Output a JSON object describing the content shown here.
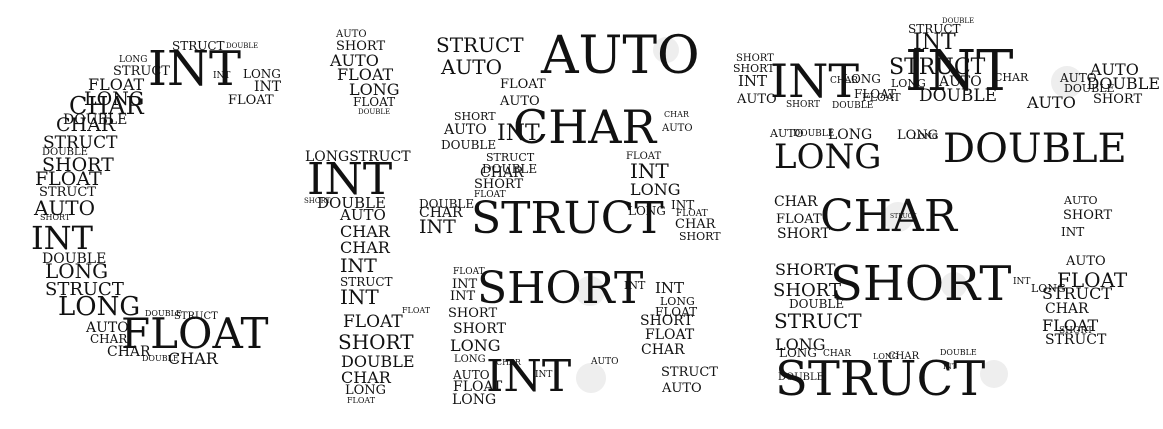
{
  "colors": {
    "background": "#ffffff",
    "text": "#111111",
    "counter_fill": "#eeeeee"
  },
  "letters": [
    {
      "name": "letter-c",
      "words": [
        "STRUCT",
        "DOUBLE",
        "INT",
        "LONG",
        "STRUCT",
        "LONG",
        "FLOAT",
        "INT",
        "LONG",
        "INT",
        "FLOAT",
        "CHAR",
        "DOUBLE",
        "CHAR",
        "STRUCT",
        "DOUBLE",
        "SHORT",
        "FLOAT",
        "STRUCT",
        "AUTO",
        "SHORT",
        "INT",
        "DOUBLE",
        "LONG",
        "STRUCT",
        "LONG",
        "DOUBLE",
        "AUTO",
        "CHAR",
        "FLOAT",
        "STRUCT",
        "CHAR",
        "DOUBLE",
        "CHAR"
      ]
    },
    {
      "name": "letter-i",
      "words": [
        "AUTO",
        "SHORT",
        "AUTO",
        "FLOAT",
        "LONG",
        "FLOAT",
        "DOUBLE",
        "LONGSTRUCT",
        "INT",
        "SHORT",
        "DOUBLE",
        "AUTO",
        "CHAR",
        "CHAR",
        "INT",
        "STRUCT",
        "INT",
        "FLOAT",
        "FLOAT",
        "SHORT",
        "DOUBLE",
        "CHAR",
        "LONG",
        "FLOAT"
      ]
    },
    {
      "name": "letter-s",
      "words": [
        "STRUCT",
        "AUTO",
        "AUTO",
        "FLOAT",
        "AUTO",
        "SHORT",
        "AUTO",
        "INT",
        "DOUBLE",
        "CHAR",
        "CHAR",
        "AUTO",
        "STRUCT",
        "DOUBLE",
        "FLOAT",
        "CHAR",
        "INT",
        "SHORT",
        "FLOAT",
        "LONG",
        "DOUBLE",
        "CHAR",
        "STRUCT",
        "INT",
        "LONG",
        "INT",
        "FLOAT",
        "CHAR",
        "SHORT",
        "FLOAT",
        "INT",
        "SHORT",
        "INT",
        "INT",
        "LONG",
        "INT",
        "SHORT",
        "SHORT",
        "FLOAT",
        "LONG",
        "SHORT",
        "FLOAT",
        "CHAR",
        "LONG",
        "AUTO",
        "INT",
        "INT",
        "FLOAT",
        "LONG",
        "CHAR",
        "AUTO",
        "STRUCT",
        "AUTO"
      ]
    },
    {
      "name": "letter-e",
      "words": [
        "STRUCT",
        "DOUBLE",
        "INT",
        "SHORT",
        "SHORT",
        "INT",
        "INT",
        "AUTO",
        "CHAR",
        "LONG",
        "FLOAT",
        "STRUCT",
        "FLOAT",
        "DOUBLE",
        "LONG",
        "AUTO",
        "CHAR",
        "INT",
        "AUTO",
        "AUTO",
        "DOUBLE",
        "AUTO",
        "DOUBLE",
        "SHORT",
        "SHORT",
        "DOUBLE",
        "AUTO",
        "DOUBLE",
        "LONG",
        "LONG",
        "LONG",
        "LONG",
        "DOUBLE",
        "CHAR",
        "FLOAT",
        "SHORT",
        "STRUCT",
        "CHAR",
        "AUTO",
        "SHORT",
        "INT",
        "AUTO",
        "SHORT",
        "SHORT",
        "DOUBLE",
        "SHORT",
        "INT",
        "LONG",
        "FLOAT",
        "STRUCT",
        "CHAR",
        "FLOAT",
        "STRUCT",
        "SHORT",
        "STRUCT",
        "LONG",
        "LONG",
        "CHAR",
        "LONG",
        "CHAR",
        "DOUBLE",
        "STRUCT",
        "DOUBLE",
        "INT"
      ]
    }
  ]
}
